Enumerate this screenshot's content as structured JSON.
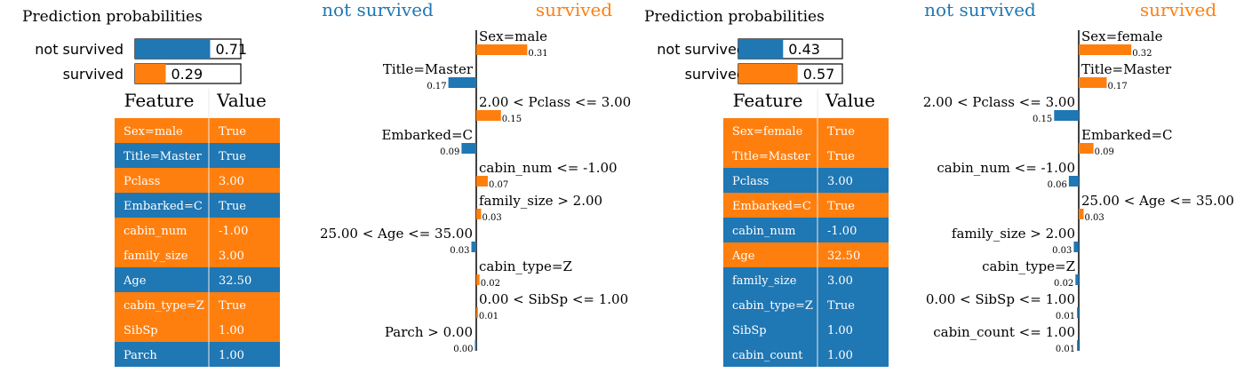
{
  "chart_data": [
    {
      "type": "bar",
      "title": "Prediction probabilities",
      "colors": {
        "not_survived": "#1f77b4",
        "survived": "#ff7f0e"
      },
      "probabilities": [
        {
          "name": "not survived",
          "value": 0.71,
          "label": "0.71"
        },
        {
          "name": "survived",
          "value": 0.29,
          "label": "0.29"
        }
      ],
      "explanation": {
        "left_heading": "not survived",
        "right_heading": "survived",
        "features": [
          {
            "label": "Sex=male",
            "weight": 0.31,
            "weight_label": "0.31"
          },
          {
            "label": "Title=Master",
            "weight": -0.17,
            "weight_label": "0.17"
          },
          {
            "label": "2.00 < Pclass <= 3.00",
            "weight": 0.15,
            "weight_label": "0.15"
          },
          {
            "label": "Embarked=C",
            "weight": -0.09,
            "weight_label": "0.09"
          },
          {
            "label": "cabin_num <= -1.00",
            "weight": 0.07,
            "weight_label": "0.07"
          },
          {
            "label": "family_size > 2.00",
            "weight": 0.03,
            "weight_label": "0.03"
          },
          {
            "label": "25.00 < Age <= 35.00",
            "weight": -0.03,
            "weight_label": "0.03"
          },
          {
            "label": "cabin_type=Z",
            "weight": 0.02,
            "weight_label": "0.02"
          },
          {
            "label": "0.00 < SibSp <= 1.00",
            "weight": 0.01,
            "weight_label": "0.01"
          },
          {
            "label": "Parch > 0.00",
            "weight": -0.001,
            "weight_label": "0.00"
          }
        ]
      },
      "table": {
        "headers": [
          "Feature",
          "Value"
        ],
        "rows": [
          {
            "feature": "Sex=male",
            "value": "True",
            "class": "survived"
          },
          {
            "feature": "Title=Master",
            "value": "True",
            "class": "not_survived"
          },
          {
            "feature": "Pclass",
            "value": "3.00",
            "class": "survived"
          },
          {
            "feature": "Embarked=C",
            "value": "True",
            "class": "not_survived"
          },
          {
            "feature": "cabin_num",
            "value": "-1.00",
            "class": "survived"
          },
          {
            "feature": "family_size",
            "value": "3.00",
            "class": "survived"
          },
          {
            "feature": "Age",
            "value": "32.50",
            "class": "not_survived"
          },
          {
            "feature": "cabin_type=Z",
            "value": "True",
            "class": "survived"
          },
          {
            "feature": "SibSp",
            "value": "1.00",
            "class": "survived"
          },
          {
            "feature": "Parch",
            "value": "1.00",
            "class": "not_survived"
          }
        ]
      }
    },
    {
      "type": "bar",
      "title": "Prediction probabilities",
      "colors": {
        "not_survived": "#1f77b4",
        "survived": "#ff7f0e"
      },
      "probabilities": [
        {
          "name": "not survived",
          "value": 0.43,
          "label": "0.43"
        },
        {
          "name": "survived",
          "value": 0.57,
          "label": "0.57"
        }
      ],
      "explanation": {
        "left_heading": "not survived",
        "right_heading": "survived",
        "features": [
          {
            "label": "Sex=female",
            "weight": 0.32,
            "weight_label": "0.32"
          },
          {
            "label": "Title=Master",
            "weight": 0.17,
            "weight_label": "0.17"
          },
          {
            "label": "2.00 < Pclass <= 3.00",
            "weight": -0.15,
            "weight_label": "0.15"
          },
          {
            "label": "Embarked=C",
            "weight": 0.09,
            "weight_label": "0.09"
          },
          {
            "label": "cabin_num <= -1.00",
            "weight": -0.06,
            "weight_label": "0.06"
          },
          {
            "label": "25.00 < Age <= 35.00",
            "weight": 0.03,
            "weight_label": "0.03"
          },
          {
            "label": "family_size > 2.00",
            "weight": -0.03,
            "weight_label": "0.03"
          },
          {
            "label": "cabin_type=Z",
            "weight": -0.02,
            "weight_label": "0.02"
          },
          {
            "label": "0.00 < SibSp <= 1.00",
            "weight": -0.01,
            "weight_label": "0.01"
          },
          {
            "label": "cabin_count <= 1.00",
            "weight": -0.01,
            "weight_label": "0.01"
          }
        ]
      },
      "table": {
        "headers": [
          "Feature",
          "Value"
        ],
        "rows": [
          {
            "feature": "Sex=female",
            "value": "True",
            "class": "survived"
          },
          {
            "feature": "Title=Master",
            "value": "True",
            "class": "survived"
          },
          {
            "feature": "Pclass",
            "value": "3.00",
            "class": "not_survived"
          },
          {
            "feature": "Embarked=C",
            "value": "True",
            "class": "survived"
          },
          {
            "feature": "cabin_num",
            "value": "-1.00",
            "class": "not_survived"
          },
          {
            "feature": "Age",
            "value": "32.50",
            "class": "survived"
          },
          {
            "feature": "family_size",
            "value": "3.00",
            "class": "not_survived"
          },
          {
            "feature": "cabin_type=Z",
            "value": "True",
            "class": "not_survived"
          },
          {
            "feature": "SibSp",
            "value": "1.00",
            "class": "not_survived"
          },
          {
            "feature": "cabin_count",
            "value": "1.00",
            "class": "not_survived"
          }
        ]
      }
    }
  ]
}
